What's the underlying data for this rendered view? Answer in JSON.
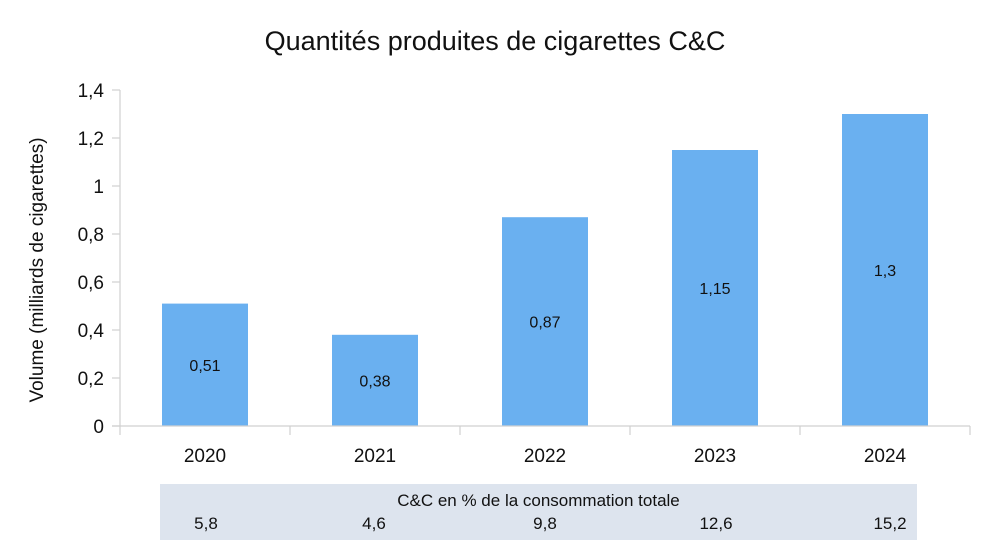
{
  "chart_data": {
    "type": "bar",
    "title": "Quantités produites de cigarettes C&C",
    "xlabel": "",
    "ylabel": "Volume (milliards de cigarettes)",
    "categories": [
      "2020",
      "2021",
      "2022",
      "2023",
      "2024"
    ],
    "values": [
      0.51,
      0.38,
      0.87,
      1.15,
      1.3
    ],
    "data_labels": [
      "0,51",
      "0,38",
      "0,87",
      "1,15",
      "1,3"
    ],
    "ylim": [
      0,
      1.4
    ],
    "yticks": [
      0,
      0.2,
      0.4,
      0.6,
      0.8,
      1,
      1.2,
      1.4
    ],
    "ytick_labels": [
      "0",
      "0,2",
      "0,4",
      "0,6",
      "0,8",
      "1",
      "1,2",
      "1,4"
    ],
    "grid": false,
    "bar_color": "#6ab0f0",
    "table": {
      "title": "C&C en % de la consommation totale",
      "values": [
        "5,8",
        "4,6",
        "9,8",
        "12,6",
        "15,2"
      ],
      "background": "#dde4ee"
    }
  }
}
